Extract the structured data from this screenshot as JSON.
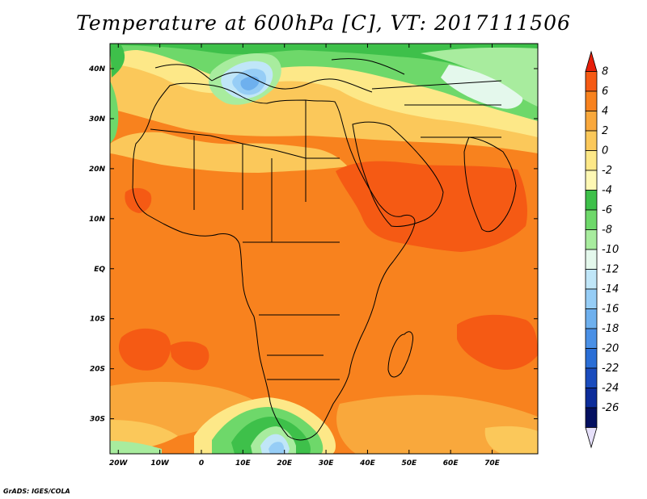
{
  "title": "Temperature at 600hPa [C], VT: 2017111506",
  "credit": "GrADS: IGES/COLA",
  "map": {
    "lon_range": [
      -22,
      81
    ],
    "lat_range": [
      -37,
      45
    ],
    "lat_ticks": [
      {
        "value": 40,
        "label": "40N"
      },
      {
        "value": 30,
        "label": "30N"
      },
      {
        "value": 20,
        "label": "20N"
      },
      {
        "value": 10,
        "label": "10N"
      },
      {
        "value": 0,
        "label": "EQ"
      },
      {
        "value": -10,
        "label": "10S"
      },
      {
        "value": -20,
        "label": "20S"
      },
      {
        "value": -30,
        "label": "30S"
      }
    ],
    "lon_ticks": [
      {
        "value": -20,
        "label": "20W"
      },
      {
        "value": -10,
        "label": "10W"
      },
      {
        "value": 0,
        "label": "0"
      },
      {
        "value": 10,
        "label": "10E"
      },
      {
        "value": 20,
        "label": "20E"
      },
      {
        "value": 30,
        "label": "30E"
      },
      {
        "value": 40,
        "label": "40E"
      },
      {
        "value": 50,
        "label": "50E"
      },
      {
        "value": 60,
        "label": "60E"
      },
      {
        "value": 70,
        "label": "70E"
      }
    ]
  },
  "colorbar": {
    "labels": [
      "8",
      "6",
      "4",
      "2",
      "0",
      "-2",
      "-4",
      "-6",
      "-8",
      "-10",
      "-12",
      "-14",
      "-16",
      "-18",
      "-20",
      "-22",
      "-24",
      "-26"
    ],
    "colors": [
      "#e61e0a",
      "#f55a14",
      "#f8821e",
      "#f9a83c",
      "#fbc85a",
      "#fde888",
      "#fef8b4",
      "#3ec04a",
      "#6ed86a",
      "#a8ec9e",
      "#e4f8ec",
      "#c0e6f8",
      "#96cdf6",
      "#6eb0ee",
      "#4a90e6",
      "#2a6ed6",
      "#1a4cbe",
      "#0c2c9a",
      "#041060",
      "#e6e0fa"
    ]
  }
}
